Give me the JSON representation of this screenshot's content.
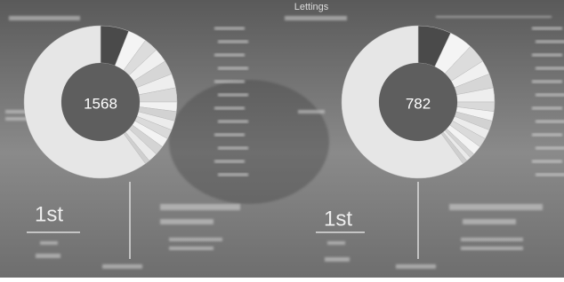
{
  "header": {
    "title": "Lettings"
  },
  "chart_data": [
    {
      "type": "pie",
      "center_label": 1568,
      "categories": [
        null,
        null,
        null,
        null,
        null,
        null,
        null,
        null,
        null,
        null,
        null,
        null,
        null,
        null,
        null,
        null
      ],
      "values": [
        6,
        4,
        3,
        3,
        3,
        3,
        3,
        2,
        2,
        2,
        2,
        2,
        2,
        2,
        1,
        60
      ],
      "colors": [
        "#4a4a4a",
        "#f4f4f4",
        "#dcdcdc",
        "#f0f0f0",
        "#d6d6d6",
        "#eeeeee",
        "#d9d9d9",
        "#f2f2f2",
        "#d2d2d2",
        "#ececec",
        "#dadada",
        "#f3f3f3",
        "#d4d4d4",
        "#eaeaea",
        "#cfcfcf",
        "#e6e6e6"
      ]
    },
    {
      "type": "pie",
      "center_label": 782,
      "categories": [
        null,
        null,
        null,
        null,
        null,
        null,
        null,
        null,
        null,
        null,
        null,
        null,
        null,
        null,
        null,
        null
      ],
      "values": [
        7,
        5,
        4,
        3,
        3,
        3,
        2,
        2,
        2,
        2,
        2,
        2,
        1,
        1,
        1,
        60
      ],
      "colors": [
        "#4a4a4a",
        "#f4f4f4",
        "#dcdcdc",
        "#f0f0f0",
        "#d6d6d6",
        "#eeeeee",
        "#d9d9d9",
        "#f2f2f2",
        "#d2d2d2",
        "#ececec",
        "#dadada",
        "#f3f3f3",
        "#d4d4d4",
        "#eaeaea",
        "#cfcfcf",
        "#e6e6e6"
      ]
    }
  ],
  "ranks": [
    "1st",
    "1st"
  ]
}
